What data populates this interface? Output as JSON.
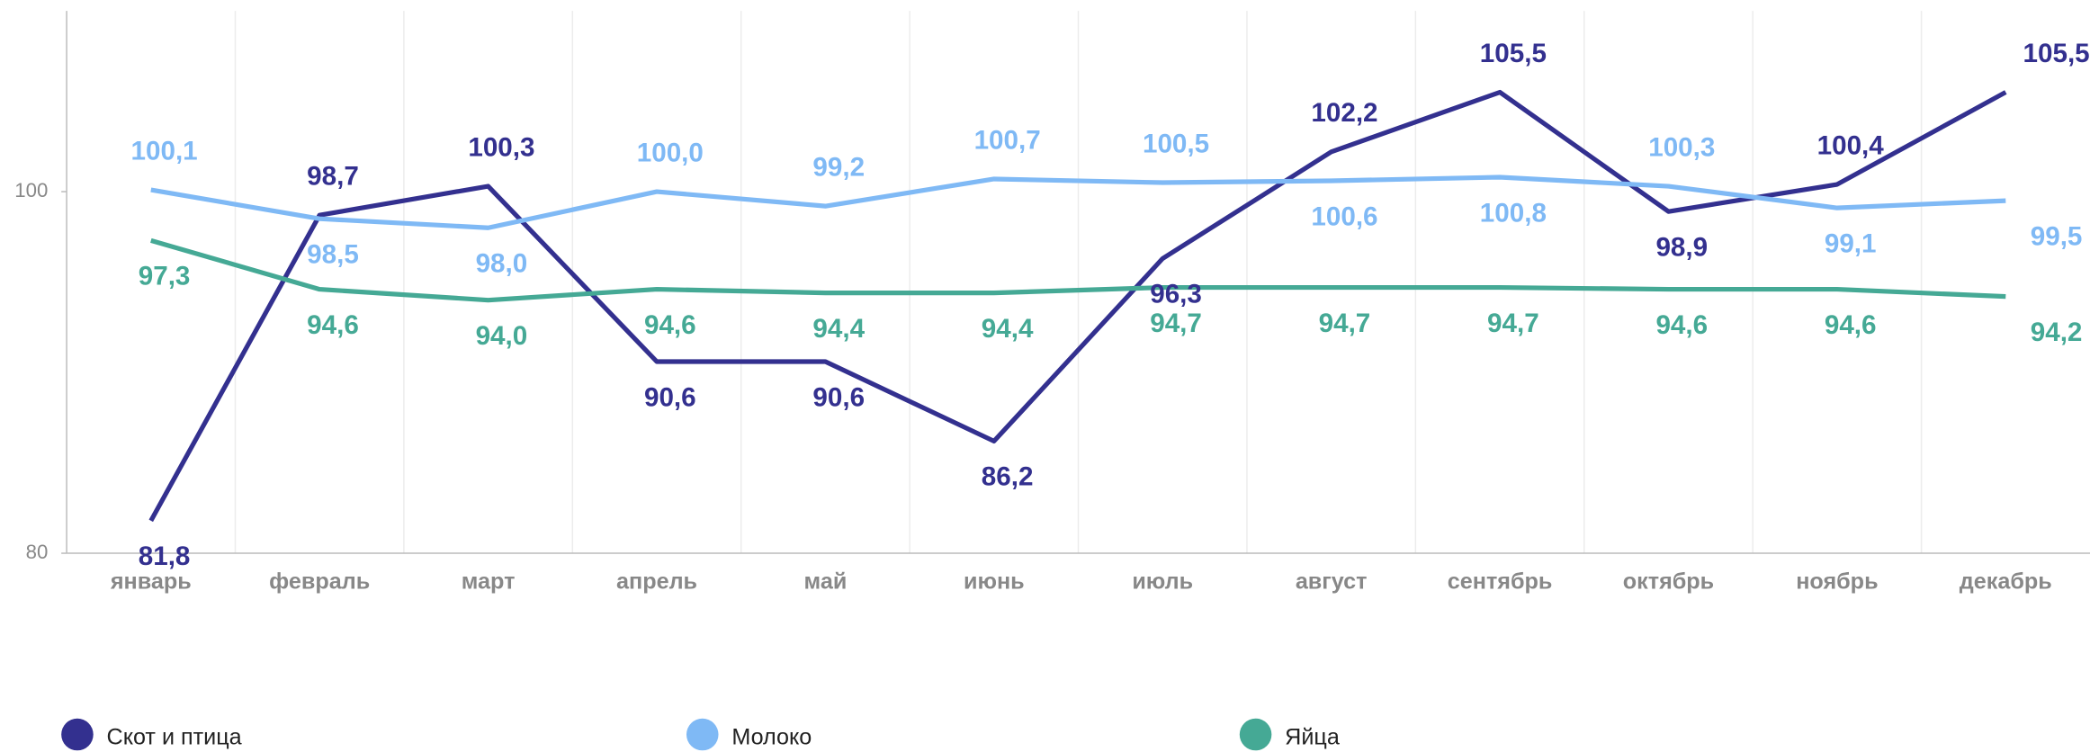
{
  "chart_data": {
    "type": "line",
    "categories": [
      "январь",
      "февраль",
      "март",
      "апрель",
      "май",
      "июнь",
      "июль",
      "август",
      "сентябрь",
      "октябрь",
      "ноябрь",
      "декабрь"
    ],
    "series": [
      {
        "name": "Скот и птица",
        "color": "#33308f",
        "values": [
          81.8,
          98.7,
          100.3,
          90.6,
          90.6,
          86.2,
          96.3,
          102.2,
          105.5,
          98.9,
          100.4,
          105.5
        ],
        "value_labels": [
          "81,8",
          "98,7",
          "100,3",
          "90,6",
          "90,6",
          "86,2",
          "96,3",
          "102,2",
          "105,5",
          "98,9",
          "100,4",
          "105,5"
        ]
      },
      {
        "name": "Молоко",
        "color": "#7fb9f5",
        "values": [
          100.1,
          98.5,
          98.0,
          100.0,
          99.2,
          100.7,
          100.5,
          100.6,
          100.8,
          100.3,
          99.1,
          99.5
        ],
        "value_labels": [
          "100,1",
          "98,5",
          "98,0",
          "100,0",
          "99,2",
          "100,7",
          "100,5",
          "100,6",
          "100,8",
          "100,3",
          "99,1",
          "99,5"
        ]
      },
      {
        "name": "Яйца",
        "color": "#45a995",
        "values": [
          97.3,
          94.6,
          94.0,
          94.6,
          94.4,
          94.4,
          94.7,
          94.7,
          94.7,
          94.6,
          94.6,
          94.2
        ],
        "value_labels": [
          "97,3",
          "94,6",
          "94,0",
          "94,6",
          "94,4",
          "94,4",
          "94,7",
          "94,7",
          "94,7",
          "94,6",
          "94,6",
          "94,2"
        ]
      }
    ],
    "ylim": [
      80,
      110
    ],
    "yticks": [
      80,
      100
    ],
    "grid": true,
    "legend": "bottom"
  }
}
